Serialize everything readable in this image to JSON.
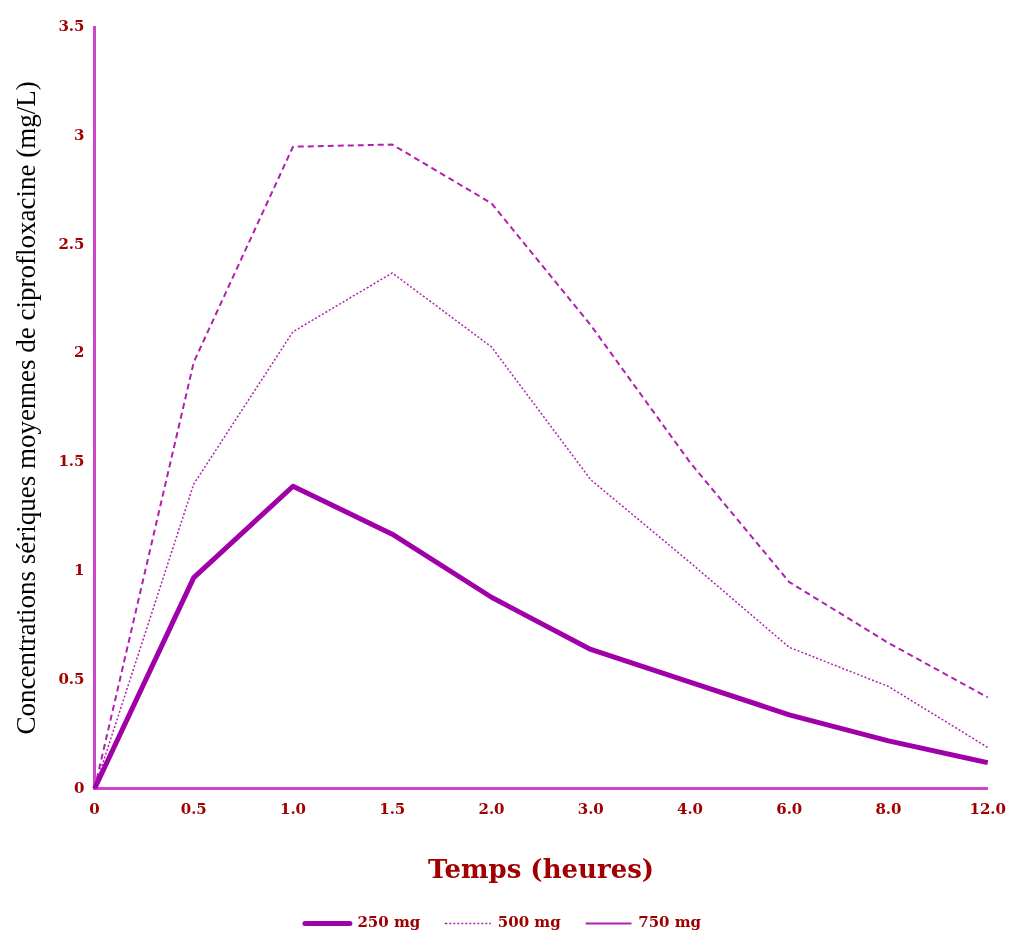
{
  "chart_data": {
    "type": "line",
    "xlabel": "Temps (heures)",
    "ylabel": "Concentrations sériques moyennes de ciprofloxacine (mg/L)",
    "categories": [
      "0",
      "0.5",
      "1.0",
      "1.5",
      "2.0",
      "3.0",
      "4.0",
      "6.0",
      "8.0",
      "12.0"
    ],
    "ylim": [
      0,
      3.5
    ],
    "yticks": [
      0,
      0.5,
      1,
      1.5,
      2,
      2.5,
      3,
      3.5
    ],
    "grid": false,
    "legend": "bottom",
    "marker": "none",
    "series": [
      {
        "name": "250 mg",
        "color": "#a000a8",
        "line_style": "solid",
        "values": [
          0,
          0.97,
          1.39,
          1.17,
          0.88,
          0.64,
          0.49,
          0.34,
          0.22,
          0.12
        ]
      },
      {
        "name": "500 mg",
        "color": "#b020b0",
        "line_style": "dotted",
        "values": [
          0,
          1.4,
          2.1,
          2.37,
          2.03,
          1.42,
          1.04,
          0.65,
          0.47,
          0.19
        ]
      },
      {
        "name": "750 mg",
        "color": "#b020b0",
        "line_style": "dashed",
        "values": [
          0,
          1.96,
          2.95,
          2.96,
          2.69,
          2.13,
          1.5,
          0.95,
          0.67,
          0.42
        ]
      }
    ]
  }
}
